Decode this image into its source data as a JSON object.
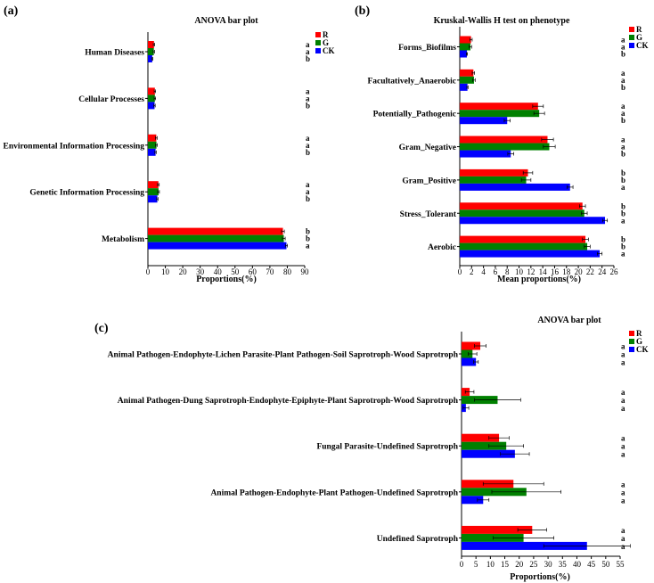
{
  "panels": [
    {
      "label": "(a)"
    },
    {
      "label": "(b)"
    },
    {
      "label": "(c)"
    }
  ],
  "chart_data": [
    {
      "type": "bar",
      "orientation": "horizontal",
      "title": "ANOVA bar plot",
      "xlabel": "Proportions(%)",
      "xlim": [
        0,
        90
      ],
      "xticks": [
        0,
        10,
        20,
        30,
        40,
        50,
        60,
        70,
        80,
        90
      ],
      "categories": [
        "Human Diseases",
        "Cellular Processes",
        "Environmental Information Processing",
        "Genetic Information Processing",
        "Metabolism"
      ],
      "series": [
        {
          "name": "R",
          "color": "#ff0000",
          "values": [
            3.5,
            4.0,
            4.8,
            6.0,
            77.5
          ],
          "errors": [
            0.4,
            0.4,
            0.5,
            0.5,
            0.8
          ],
          "letters": [
            "a",
            "a",
            "a",
            "a",
            "b"
          ]
        },
        {
          "name": "G",
          "color": "#008000",
          "values": [
            3.4,
            4.0,
            4.9,
            6.1,
            78.0
          ],
          "errors": [
            0.4,
            0.4,
            0.5,
            0.5,
            0.8
          ],
          "letters": [
            "a",
            "a",
            "a",
            "a",
            "b"
          ]
        },
        {
          "name": "CK",
          "color": "#0000ff",
          "values": [
            2.5,
            3.8,
            4.4,
            5.4,
            79.5
          ],
          "errors": [
            0.3,
            0.4,
            0.4,
            0.4,
            0.6
          ],
          "letters": [
            "b",
            "b",
            "b",
            "b",
            "a"
          ]
        }
      ],
      "legend": "top-right"
    },
    {
      "type": "bar",
      "orientation": "horizontal",
      "title": "Kruskal-Wallis H test on phenotype",
      "xlabel": "Mean proportions(%)",
      "xlim": [
        0,
        26
      ],
      "xticks": [
        0,
        2,
        4,
        6,
        8,
        10,
        12,
        14,
        16,
        18,
        20,
        22,
        24,
        26
      ],
      "categories": [
        "Forms_Biofilms",
        "Facultatively_Anaerobic",
        "Potentially_Pathogenic",
        "Gram_Negative",
        "Gram_Positive",
        "Stress_Tolerant",
        "Aerobic"
      ],
      "series": [
        {
          "name": "R",
          "color": "#ff0000",
          "values": [
            1.9,
            2.3,
            13.2,
            14.8,
            11.5,
            20.7,
            21.2
          ],
          "errors": [
            0.2,
            0.2,
            0.9,
            1.0,
            0.8,
            0.5,
            0.5
          ],
          "letters": [
            "a",
            "a",
            "a",
            "a",
            "b",
            "b",
            "b"
          ]
        },
        {
          "name": "G",
          "color": "#008000",
          "values": [
            1.8,
            2.4,
            13.4,
            15.1,
            11.2,
            21.0,
            21.5
          ],
          "errors": [
            0.2,
            0.2,
            0.9,
            1.0,
            0.8,
            0.5,
            0.5
          ],
          "letters": [
            "a",
            "a",
            "a",
            "a",
            "b",
            "b",
            "b"
          ]
        },
        {
          "name": "CK",
          "color": "#0000ff",
          "values": [
            1.2,
            1.3,
            8.0,
            8.6,
            18.6,
            24.5,
            23.6
          ],
          "errors": [
            0.1,
            0.1,
            0.5,
            0.5,
            0.5,
            0.4,
            0.4
          ],
          "letters": [
            "b",
            "b",
            "b",
            "b",
            "a",
            "a",
            "a"
          ]
        }
      ],
      "legend": "top-right"
    },
    {
      "type": "bar",
      "orientation": "horizontal",
      "title": "ANOVA bar plot",
      "xlabel": "Proportions(%)",
      "xlim": [
        0,
        55
      ],
      "xticks": [
        0,
        5,
        10,
        15,
        20,
        25,
        30,
        35,
        40,
        45,
        50,
        55
      ],
      "categories": [
        "Animal Pathogen-Endophyte-Lichen Parasite-Plant Pathogen-Soil Saprotroph-Wood Saprotroph",
        "Animal Pathogen-Dung Saprotroph-Endophyte-Epiphyte-Plant Saprotroph-Wood Saprotroph",
        "Fungal Parasite-Undefined Saprotroph",
        "Animal Pathogen-Endophyte-Plant Pathogen-Undefined Saprotroph",
        "Undefined Saprotroph"
      ],
      "series": [
        {
          "name": "R",
          "color": "#ff0000",
          "values": [
            6.5,
            2.8,
            13.0,
            18.0,
            24.5
          ],
          "errors": [
            2.0,
            1.5,
            3.5,
            10.5,
            5.0
          ],
          "letters": [
            "a",
            "a",
            "a",
            "a",
            "a"
          ]
        },
        {
          "name": "G",
          "color": "#008000",
          "values": [
            3.8,
            12.5,
            15.5,
            22.5,
            21.5
          ],
          "errors": [
            1.5,
            8.0,
            6.0,
            12.0,
            10.5
          ],
          "letters": [
            "a",
            "a",
            "a",
            "a",
            "a"
          ]
        },
        {
          "name": "CK",
          "color": "#0000ff",
          "values": [
            5.0,
            1.5,
            18.5,
            7.5,
            43.5
          ],
          "errors": [
            0.8,
            1.0,
            5.0,
            2.0,
            15.0
          ],
          "letters": [
            "a",
            "a",
            "a",
            "a",
            "a"
          ]
        }
      ],
      "legend": "top-right"
    }
  ]
}
